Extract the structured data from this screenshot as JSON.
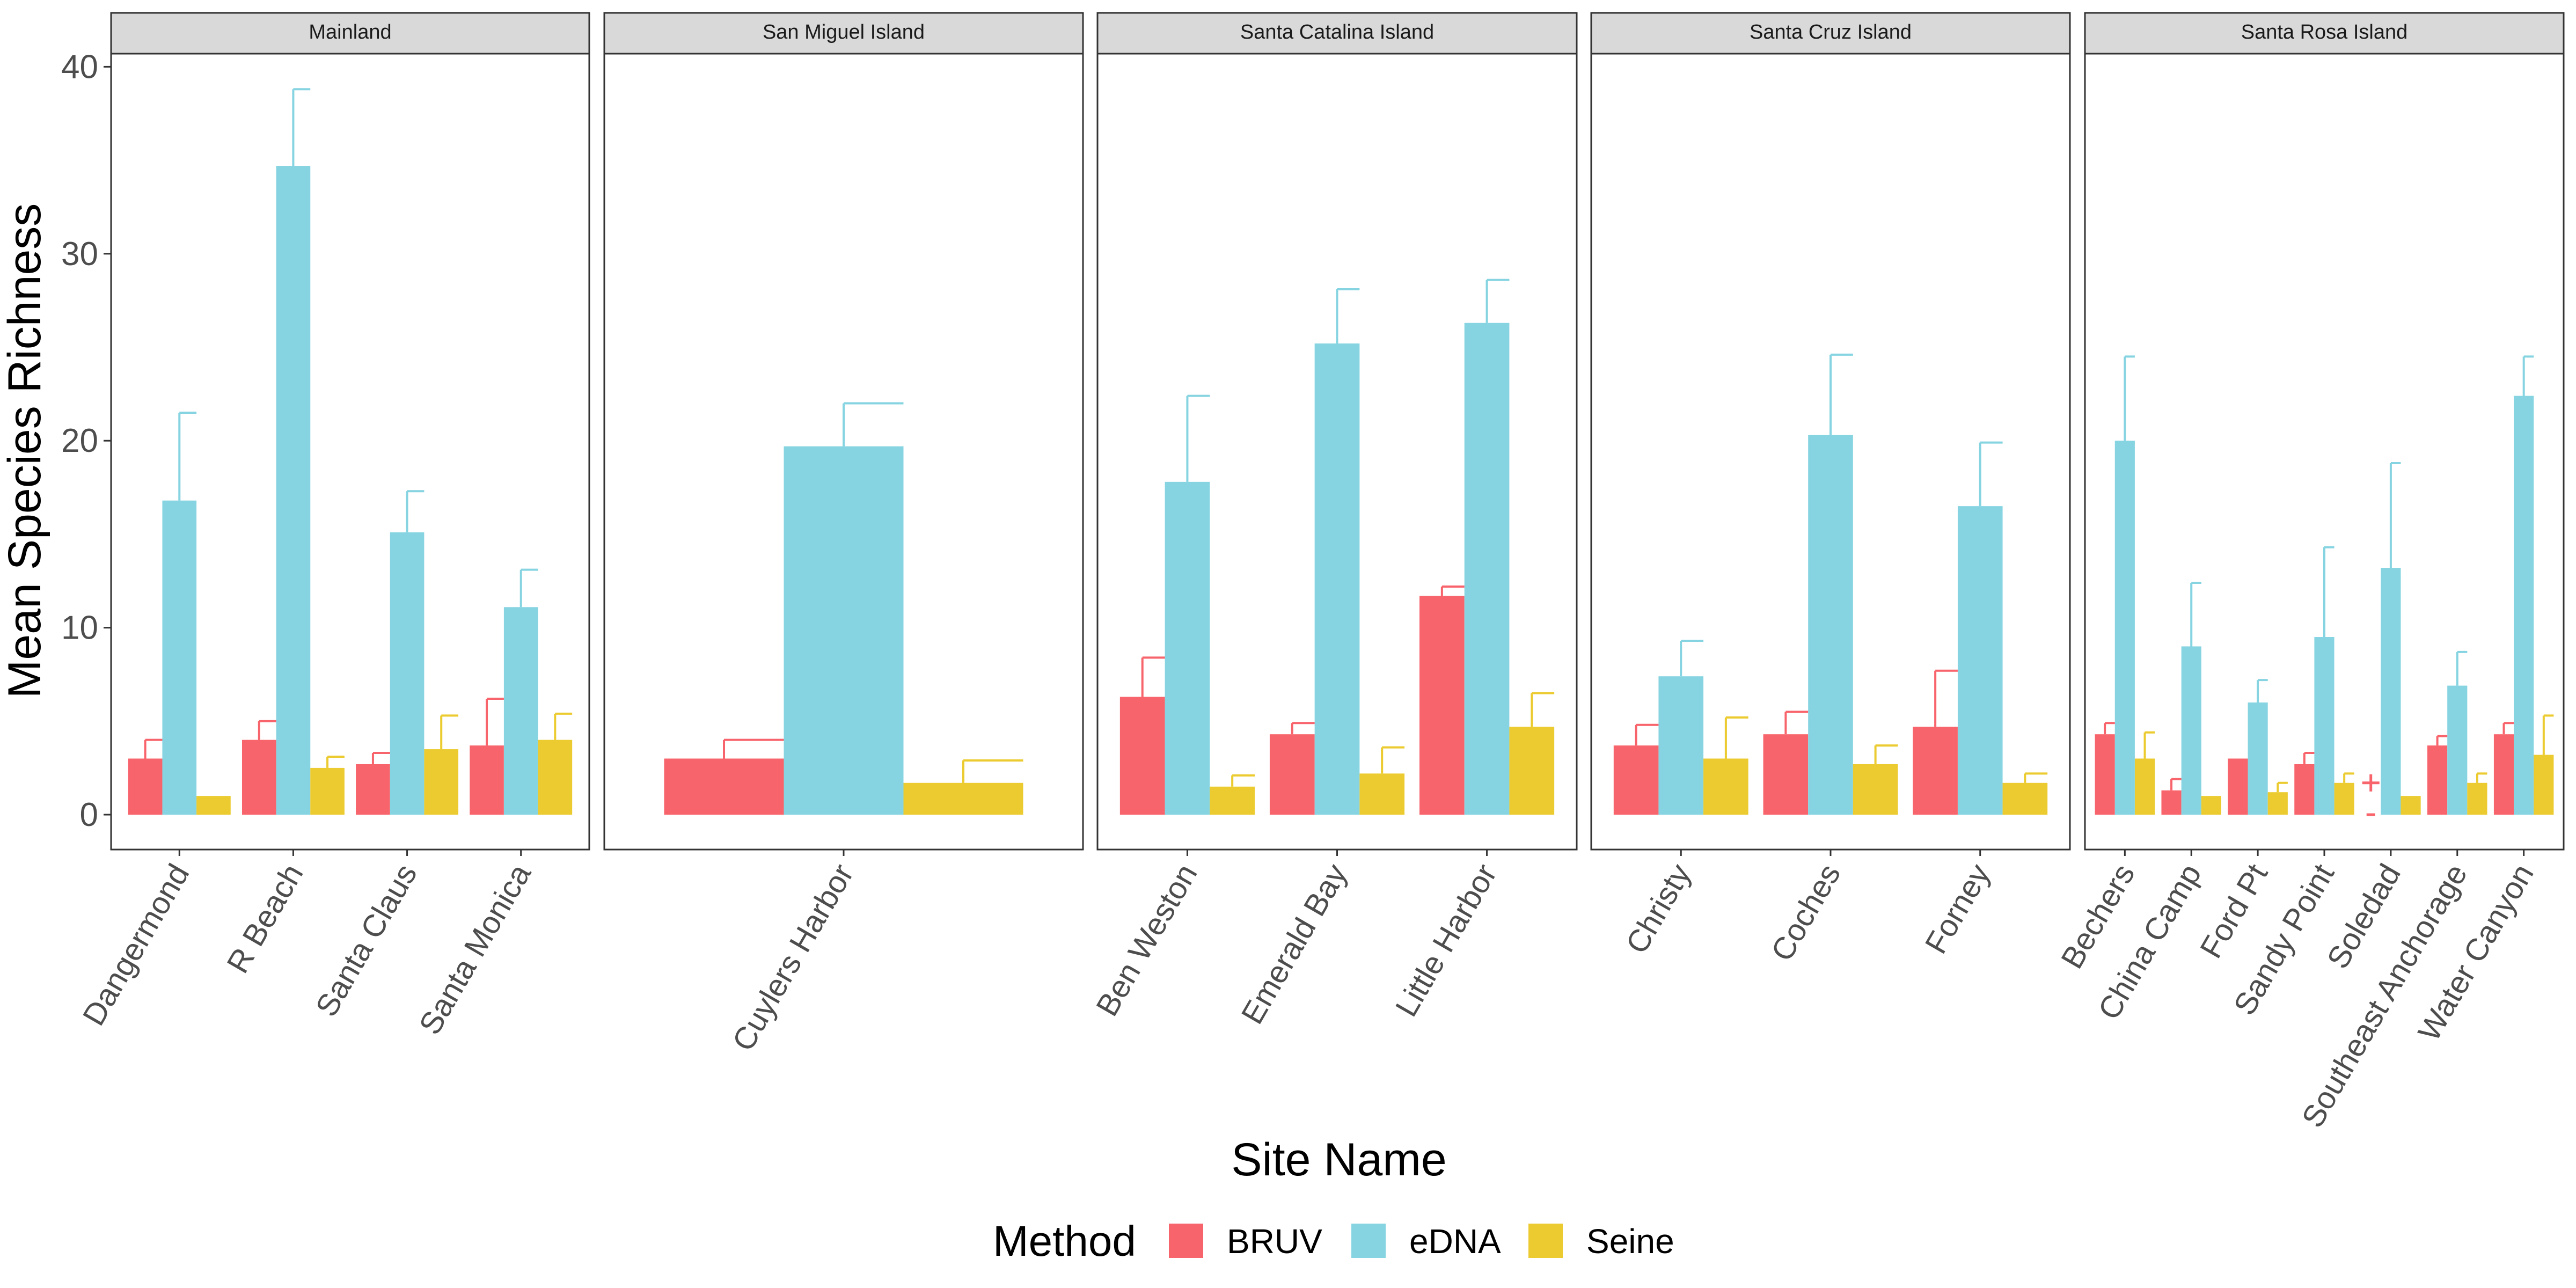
{
  "chart_data": {
    "type": "bar",
    "ylabel": "Mean Species Richness",
    "xlabel": "Site Name",
    "ylim": [
      -2,
      42
    ],
    "yticks": [
      0,
      10,
      20,
      30,
      40
    ],
    "grid": false,
    "legend": {
      "title": "Method",
      "position": "bottom",
      "entries": [
        {
          "name": "BRUV",
          "color": "#F8646B"
        },
        {
          "name": "eDNA",
          "color": "#86D4E1"
        },
        {
          "name": "Seine",
          "color": "#EBCB2F"
        }
      ]
    },
    "series_names": [
      "BRUV",
      "eDNA",
      "Seine"
    ],
    "panels": [
      {
        "title": "Mainland",
        "sites": [
          {
            "name": "Dangermond",
            "values": [
              3.0,
              16.8,
              1.0
            ],
            "upper": [
              4.0,
              21.5,
              null
            ]
          },
          {
            "name": "R Beach",
            "values": [
              4.0,
              34.7,
              2.5
            ],
            "upper": [
              5.0,
              38.8,
              3.1
            ]
          },
          {
            "name": "Santa Claus",
            "values": [
              2.7,
              15.1,
              3.5
            ],
            "upper": [
              3.3,
              17.3,
              5.3
            ]
          },
          {
            "name": "Santa Monica",
            "values": [
              3.7,
              11.1,
              4.0
            ],
            "upper": [
              6.2,
              13.1,
              5.4
            ]
          }
        ]
      },
      {
        "title": "San Miguel Island",
        "sites": [
          {
            "name": "Cuylers Harbor",
            "values": [
              3.0,
              19.7,
              1.7
            ],
            "upper": [
              4.0,
              22.0,
              2.9
            ]
          }
        ]
      },
      {
        "title": "Santa Catalina Island",
        "sites": [
          {
            "name": "Ben Weston",
            "values": [
              6.3,
              17.8,
              1.5
            ],
            "upper": [
              8.4,
              22.4,
              2.1
            ]
          },
          {
            "name": "Emerald Bay",
            "values": [
              4.3,
              25.2,
              2.2
            ],
            "upper": [
              4.9,
              28.1,
              3.6
            ]
          },
          {
            "name": "Little Harbor",
            "values": [
              11.7,
              26.3,
              4.7
            ],
            "upper": [
              12.2,
              28.6,
              6.5
            ]
          }
        ]
      },
      {
        "title": "Santa Cruz Island",
        "sites": [
          {
            "name": "Christy",
            "values": [
              3.7,
              7.4,
              3.0
            ],
            "upper": [
              4.8,
              9.3,
              5.2
            ]
          },
          {
            "name": "Coches",
            "values": [
              4.3,
              20.3,
              2.7
            ],
            "upper": [
              5.5,
              24.6,
              3.7
            ]
          },
          {
            "name": "Forney",
            "values": [
              4.7,
              16.5,
              1.7
            ],
            "upper": [
              7.7,
              19.9,
              2.2
            ]
          }
        ]
      },
      {
        "title": "Santa Rosa Island",
        "sites": [
          {
            "name": "Bechers",
            "values": [
              4.3,
              20.0,
              3.0
            ],
            "upper": [
              4.9,
              24.5,
              4.4
            ]
          },
          {
            "name": "China Camp",
            "values": [
              1.3,
              9.0,
              1.0
            ],
            "upper": [
              1.9,
              12.4,
              null
            ]
          },
          {
            "name": "Ford Pt",
            "values": [
              3.0,
              6.0,
              1.2
            ],
            "upper": [
              3.0,
              7.2,
              1.7
            ]
          },
          {
            "name": "Sandy Point",
            "values": [
              2.7,
              9.5,
              1.7
            ],
            "upper": [
              3.3,
              14.3,
              2.2
            ]
          },
          {
            "name": "Soledad",
            "values": [
              1.7,
              13.2,
              1.0
            ],
            "upper": [
              null,
              18.8,
              null
            ],
            "bruv_marker": "point_range"
          },
          {
            "name": "Southeast Anchorage",
            "values": [
              3.7,
              6.9,
              1.7
            ],
            "upper": [
              4.2,
              8.7,
              2.2
            ]
          },
          {
            "name": "Water Canyon",
            "values": [
              4.3,
              22.4,
              3.2
            ],
            "upper": [
              4.9,
              24.5,
              5.3
            ]
          }
        ]
      }
    ]
  }
}
